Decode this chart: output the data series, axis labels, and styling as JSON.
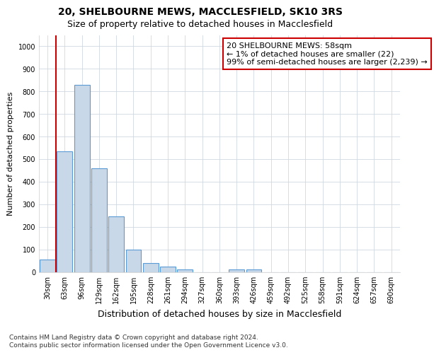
{
  "title": "20, SHELBOURNE MEWS, MACCLESFIELD, SK10 3RS",
  "subtitle": "Size of property relative to detached houses in Macclesfield",
  "xlabel": "Distribution of detached houses by size in Macclesfield",
  "ylabel": "Number of detached properties",
  "categories": [
    "30sqm",
    "63sqm",
    "96sqm",
    "129sqm",
    "162sqm",
    "195sqm",
    "228sqm",
    "261sqm",
    "294sqm",
    "327sqm",
    "360sqm",
    "393sqm",
    "426sqm",
    "459sqm",
    "492sqm",
    "525sqm",
    "558sqm",
    "591sqm",
    "624sqm",
    "657sqm",
    "690sqm"
  ],
  "values": [
    55,
    535,
    828,
    460,
    246,
    98,
    38,
    22,
    12,
    0,
    0,
    10,
    10,
    0,
    0,
    0,
    0,
    0,
    0,
    0,
    0
  ],
  "bar_color": "#c8d8e8",
  "bar_edge_color": "#5b9bd5",
  "property_line_color": "#cc0000",
  "annotation_text": "20 SHELBOURNE MEWS: 58sqm\n← 1% of detached houses are smaller (22)\n99% of semi-detached houses are larger (2,239) →",
  "annotation_box_color": "#ffffff",
  "annotation_box_edge": "#cc0000",
  "ylim": [
    0,
    1050
  ],
  "yticks": [
    0,
    100,
    200,
    300,
    400,
    500,
    600,
    700,
    800,
    900,
    1000
  ],
  "footer_line1": "Contains HM Land Registry data © Crown copyright and database right 2024.",
  "footer_line2": "Contains public sector information licensed under the Open Government Licence v3.0.",
  "bg_color": "#ffffff",
  "plot_bg_color": "#ffffff",
  "title_fontsize": 10,
  "subtitle_fontsize": 9,
  "xlabel_fontsize": 9,
  "ylabel_fontsize": 8,
  "tick_fontsize": 7,
  "annotation_fontsize": 8,
  "footer_fontsize": 6.5
}
